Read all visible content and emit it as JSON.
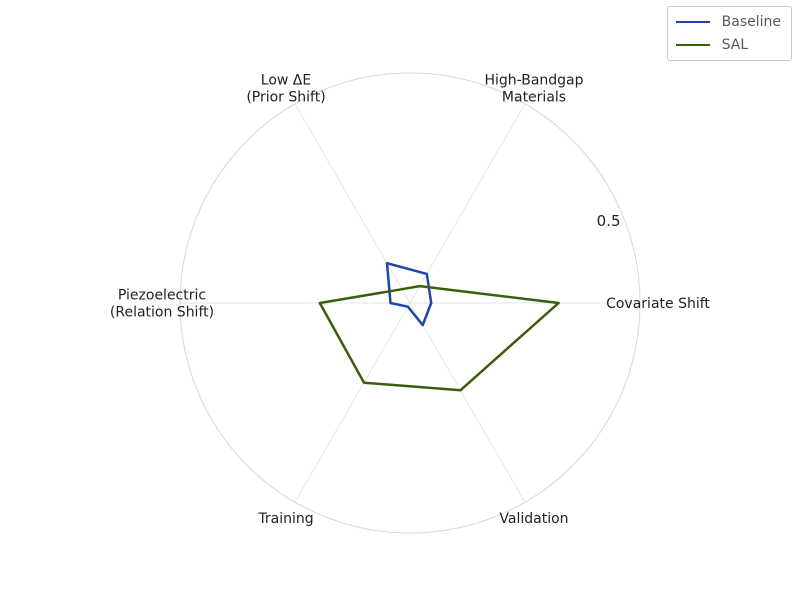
{
  "chart_data": {
    "type": "radar",
    "axes": [
      "Covariate Shift",
      "High-Bandgap\nMaterials",
      "Low ΔE\n(Prior Shift)",
      "Piezoelectric\n(Relation Shift)",
      "Training",
      "Validation"
    ],
    "rmax": 0.65,
    "ticks": [
      {
        "value": 0.5,
        "label": "0.5"
      }
    ],
    "grid": true,
    "legend_position": "top-right",
    "series": [
      {
        "name": "Baseline",
        "color": "#1f45a8",
        "values": [
          0.06,
          0.095,
          0.13,
          0.055,
          0.012,
          0.072
        ]
      },
      {
        "name": "SAL",
        "color": "#3a5f0b",
        "values": [
          0.42,
          0.055,
          0.045,
          0.255,
          0.26,
          0.285
        ]
      }
    ]
  }
}
